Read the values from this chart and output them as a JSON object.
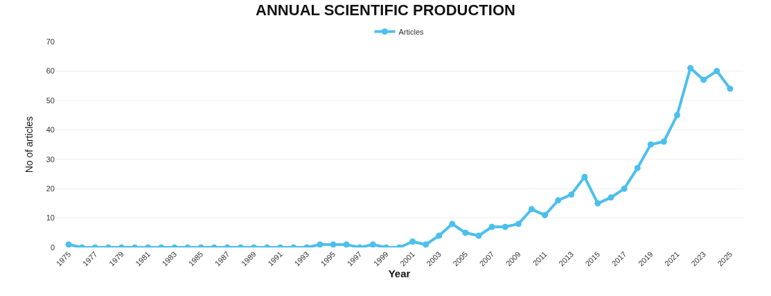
{
  "chart_data": {
    "type": "line",
    "title": "ANNUAL SCIENTIFIC PRODUCTION",
    "xlabel": "Year",
    "ylabel": "No of articles",
    "x": [
      1975,
      1976,
      1977,
      1978,
      1979,
      1980,
      1981,
      1982,
      1983,
      1984,
      1985,
      1986,
      1987,
      1988,
      1989,
      1990,
      1991,
      1992,
      1993,
      1994,
      1995,
      1996,
      1997,
      1998,
      1999,
      2000,
      2001,
      2002,
      2003,
      2004,
      2005,
      2006,
      2007,
      2008,
      2009,
      2010,
      2011,
      2012,
      2013,
      2014,
      2015,
      2016,
      2017,
      2018,
      2019,
      2020,
      2021,
      2022,
      2023,
      2024,
      2025
    ],
    "series": [
      {
        "name": "Articles",
        "color": "#4cbfec",
        "values": [
          1,
          0,
          0,
          0,
          0,
          0,
          0,
          0,
          0,
          0,
          0,
          0,
          0,
          0,
          0,
          0,
          0,
          0,
          0,
          1,
          1,
          1,
          0,
          1,
          0,
          0,
          2,
          1,
          4,
          8,
          5,
          4,
          7,
          7,
          8,
          13,
          11,
          16,
          18,
          24,
          15,
          17,
          20,
          27,
          35,
          36,
          45,
          61,
          57,
          60,
          54
        ]
      }
    ],
    "xlim": [
      1974,
      2026
    ],
    "xticks": [
      1975,
      1977,
      1979,
      1981,
      1983,
      1985,
      1987,
      1989,
      1991,
      1993,
      1995,
      1997,
      1999,
      2001,
      2003,
      2005,
      2007,
      2009,
      2011,
      2013,
      2015,
      2017,
      2019,
      2021,
      2023,
      2025
    ],
    "ylim": [
      0,
      70
    ],
    "yticks": [
      0,
      10,
      20,
      30,
      40,
      50,
      60,
      70
    ],
    "grid": "y",
    "legend": "top",
    "marker": "circle",
    "line_style": "solid"
  }
}
